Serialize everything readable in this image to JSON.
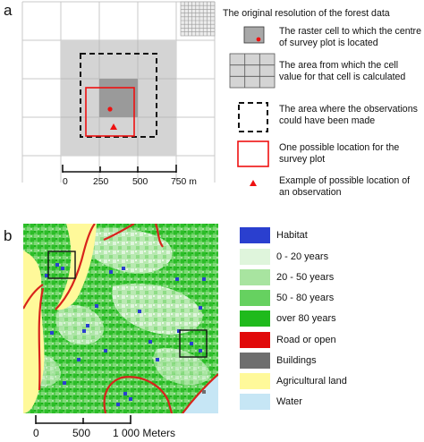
{
  "panel_a": {
    "letter": "a",
    "scale_ticks": [
      "0",
      "250",
      "500",
      "750 m"
    ],
    "legend": [
      {
        "id": "orig",
        "text": "The original resolution of the forest data"
      },
      {
        "id": "raster",
        "text": "The raster cell to which the centre of survey plot is located"
      },
      {
        "id": "area",
        "text": "The area from which the cell value for that cell is calculated"
      },
      {
        "id": "obs",
        "text": "The area where the observations could have been made"
      },
      {
        "id": "plot",
        "text": "One possible location for the survey plot"
      },
      {
        "id": "example",
        "text": "Example of possible location of an observation"
      }
    ]
  },
  "panel_b": {
    "letter": "b",
    "scale_ticks": [
      "0",
      "500",
      "1 000 Meters"
    ],
    "legend": [
      {
        "label": "Habitat",
        "color": "#2a3fcf"
      },
      {
        "label": "0 - 20 years",
        "color": "#dff5dc"
      },
      {
        "label": "20 - 50 years",
        "color": "#a8e4a0"
      },
      {
        "label": "50 - 80 years",
        "color": "#66d160"
      },
      {
        "label": "over 80 years",
        "color": "#1fba1c"
      },
      {
        "label": "Road or open",
        "color": "#e10a0a"
      },
      {
        "label": "Buildings",
        "color": "#6e6e6e"
      },
      {
        "label": "Agricultural land",
        "color": "#fff99a"
      },
      {
        "label": "Water",
        "color": "#c6e6f5"
      }
    ]
  }
}
